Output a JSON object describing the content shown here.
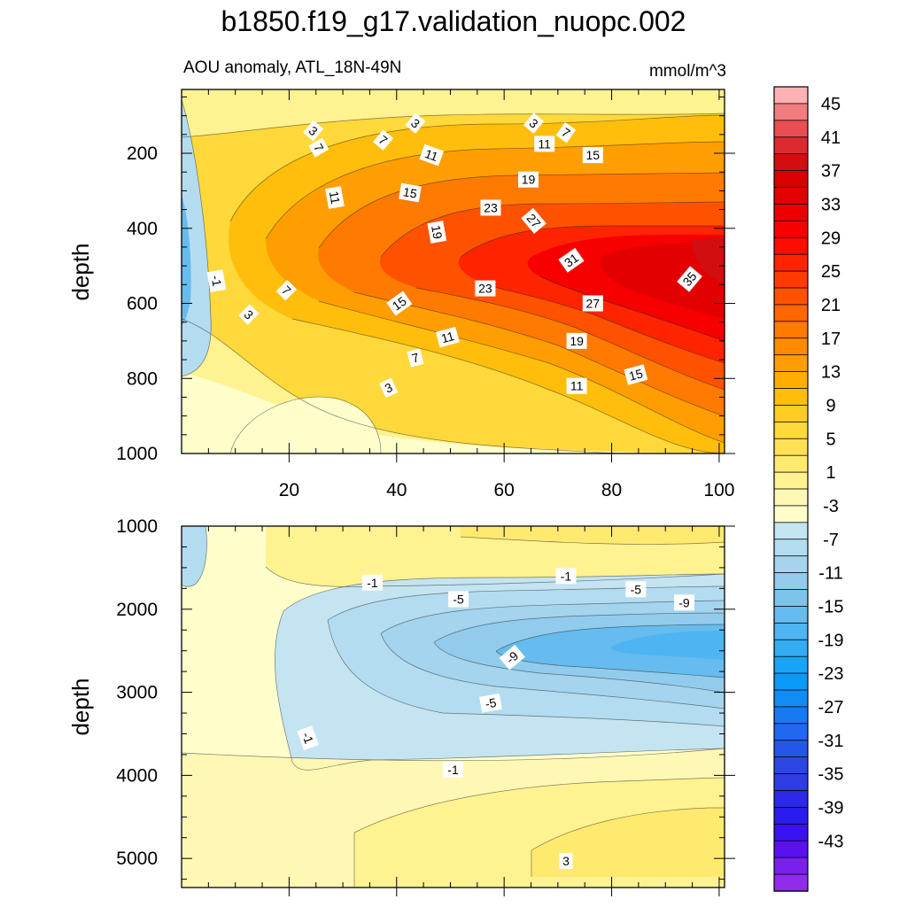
{
  "chart_data": {
    "type": "heatmap",
    "title": "b1850.f19_g17.validation_nuopc.002",
    "subtitle": "AOU anomaly, ATL_18N-49N",
    "units": "mmol/m^3",
    "ylabel": "depth",
    "x_ticks": [
      20,
      40,
      60,
      80,
      100
    ],
    "xlim": [
      0,
      101
    ],
    "panels": [
      {
        "name": "upper",
        "ylim": [
          1000,
          30
        ],
        "y_ticks": [
          200,
          400,
          600,
          800,
          1000
        ],
        "show_x_tick_labels": true,
        "contour_labels": [
          {
            "text": "3",
            "x": 43.5,
            "y": 120,
            "rot": 40
          },
          {
            "text": "3",
            "x": 65.5,
            "y": 120,
            "rot": 40
          },
          {
            "text": "3",
            "x": 24.5,
            "y": 140,
            "rot": 40
          },
          {
            "text": "7",
            "x": 71.5,
            "y": 145,
            "rot": 35
          },
          {
            "text": "7",
            "x": 37.5,
            "y": 165,
            "rot": 40
          },
          {
            "text": "7",
            "x": 25.5,
            "y": 185,
            "rot": 60
          },
          {
            "text": "11",
            "x": 67.5,
            "y": 175,
            "rot": 0
          },
          {
            "text": "11",
            "x": 46.5,
            "y": 205,
            "rot": 20
          },
          {
            "text": "15",
            "x": 76.5,
            "y": 205,
            "rot": 0
          },
          {
            "text": "19",
            "x": 64.5,
            "y": 270,
            "rot": 0
          },
          {
            "text": "15",
            "x": 42.5,
            "y": 305,
            "rot": 10
          },
          {
            "text": "11",
            "x": 28.5,
            "y": 318,
            "rot": 80
          },
          {
            "text": "23",
            "x": 57.5,
            "y": 345,
            "rot": 0
          },
          {
            "text": "27",
            "x": 65.5,
            "y": 380,
            "rot": 50
          },
          {
            "text": "19",
            "x": 47.5,
            "y": 410,
            "rot": 80
          },
          {
            "text": "31",
            "x": 72.5,
            "y": 485,
            "rot": -35
          },
          {
            "text": "35",
            "x": 94.5,
            "y": 535,
            "rot": -50
          },
          {
            "text": "-1",
            "x": 6.5,
            "y": 540,
            "rot": 80
          },
          {
            "text": "23",
            "x": 56.5,
            "y": 560,
            "rot": 0
          },
          {
            "text": "7",
            "x": 19.5,
            "y": 565,
            "rot": 45
          },
          {
            "text": "15",
            "x": 40.5,
            "y": 600,
            "rot": -35
          },
          {
            "text": "27",
            "x": 76.5,
            "y": 600,
            "rot": 0
          },
          {
            "text": "3",
            "x": 12.5,
            "y": 630,
            "rot": 45
          },
          {
            "text": "11",
            "x": 49.5,
            "y": 690,
            "rot": -15
          },
          {
            "text": "19",
            "x": 73.5,
            "y": 700,
            "rot": 0
          },
          {
            "text": "7",
            "x": 43.5,
            "y": 745,
            "rot": -15
          },
          {
            "text": "15",
            "x": 84.5,
            "y": 790,
            "rot": -15
          },
          {
            "text": "11",
            "x": 73.5,
            "y": 820,
            "rot": 0
          },
          {
            "text": "3",
            "x": 38.5,
            "y": 825,
            "rot": -25
          }
        ]
      },
      {
        "name": "lower",
        "ylim": [
          5350,
          1000
        ],
        "y_ticks": [
          1000,
          2000,
          3000,
          4000,
          5000
        ],
        "show_x_tick_labels": false,
        "contour_labels": [
          {
            "text": "-1",
            "x": 35.5,
            "y": 1680,
            "rot": 0
          },
          {
            "text": "-1",
            "x": 71.5,
            "y": 1600,
            "rot": 0
          },
          {
            "text": "-5",
            "x": 51.5,
            "y": 1880,
            "rot": 0
          },
          {
            "text": "-5",
            "x": 84.5,
            "y": 1760,
            "rot": 0
          },
          {
            "text": "-9",
            "x": 93.5,
            "y": 1920,
            "rot": 0
          },
          {
            "text": "-9",
            "x": 61.5,
            "y": 2580,
            "rot": -40
          },
          {
            "text": "-5",
            "x": 57.5,
            "y": 3130,
            "rot": -10
          },
          {
            "text": "-1",
            "x": 23.5,
            "y": 3550,
            "rot": 70
          },
          {
            "text": "-1",
            "x": 50.5,
            "y": 3930,
            "rot": 0
          },
          {
            "text": "3",
            "x": 71.5,
            "y": 5030,
            "rot": 0
          }
        ]
      }
    ],
    "levels": [
      -45,
      -43,
      -41,
      -39,
      -37,
      -35,
      -33,
      -31,
      -29,
      -27,
      -25,
      -23,
      -21,
      -19,
      -17,
      -15,
      -13,
      -11,
      -9,
      -7,
      -5,
      -3,
      -1,
      1,
      3,
      5,
      7,
      9,
      11,
      13,
      15,
      17,
      19,
      21,
      23,
      25,
      27,
      29,
      31,
      33,
      35,
      37,
      39,
      41,
      43,
      45
    ],
    "colorbar_labels": [
      45,
      41,
      37,
      33,
      29,
      25,
      21,
      17,
      13,
      9,
      5,
      1,
      -3,
      -7,
      -11,
      -15,
      -19,
      -23,
      -27,
      -31,
      -35,
      -39,
      -43
    ],
    "colors_top_to_bottom": [
      "#ffb2b4",
      "#f27d80",
      "#e84e52",
      "#dc2a2e",
      "#d20e10",
      "#d80000",
      "#e30000",
      "#ee0000",
      "#f70000",
      "#ff0c00",
      "#ff2400",
      "#ff3c00",
      "#ff5200",
      "#ff6600",
      "#ff7a00",
      "#ff8c00",
      "#ff9e00",
      "#ffae00",
      "#ffbe0c",
      "#ffcc22",
      "#ffd83a",
      "#ffe254",
      "#ffea70",
      "#fff290",
      "#fff8b4",
      "#ffffcc",
      "#c4e4f2",
      "#b4dcf0",
      "#a4d4ee",
      "#92ccec",
      "#7ec4ea",
      "#66bcee",
      "#4eb4f2",
      "#34acf4",
      "#1aa4f8",
      "#0c9af8",
      "#108cf4",
      "#187af2",
      "#2068ee",
      "#2656e8",
      "#2c48e4",
      "#2e3ce4",
      "#2c2ae8",
      "#2a1cee",
      "#3a12f2",
      "#5a10f0",
      "#7a20ec",
      "#8e2cea"
    ]
  }
}
